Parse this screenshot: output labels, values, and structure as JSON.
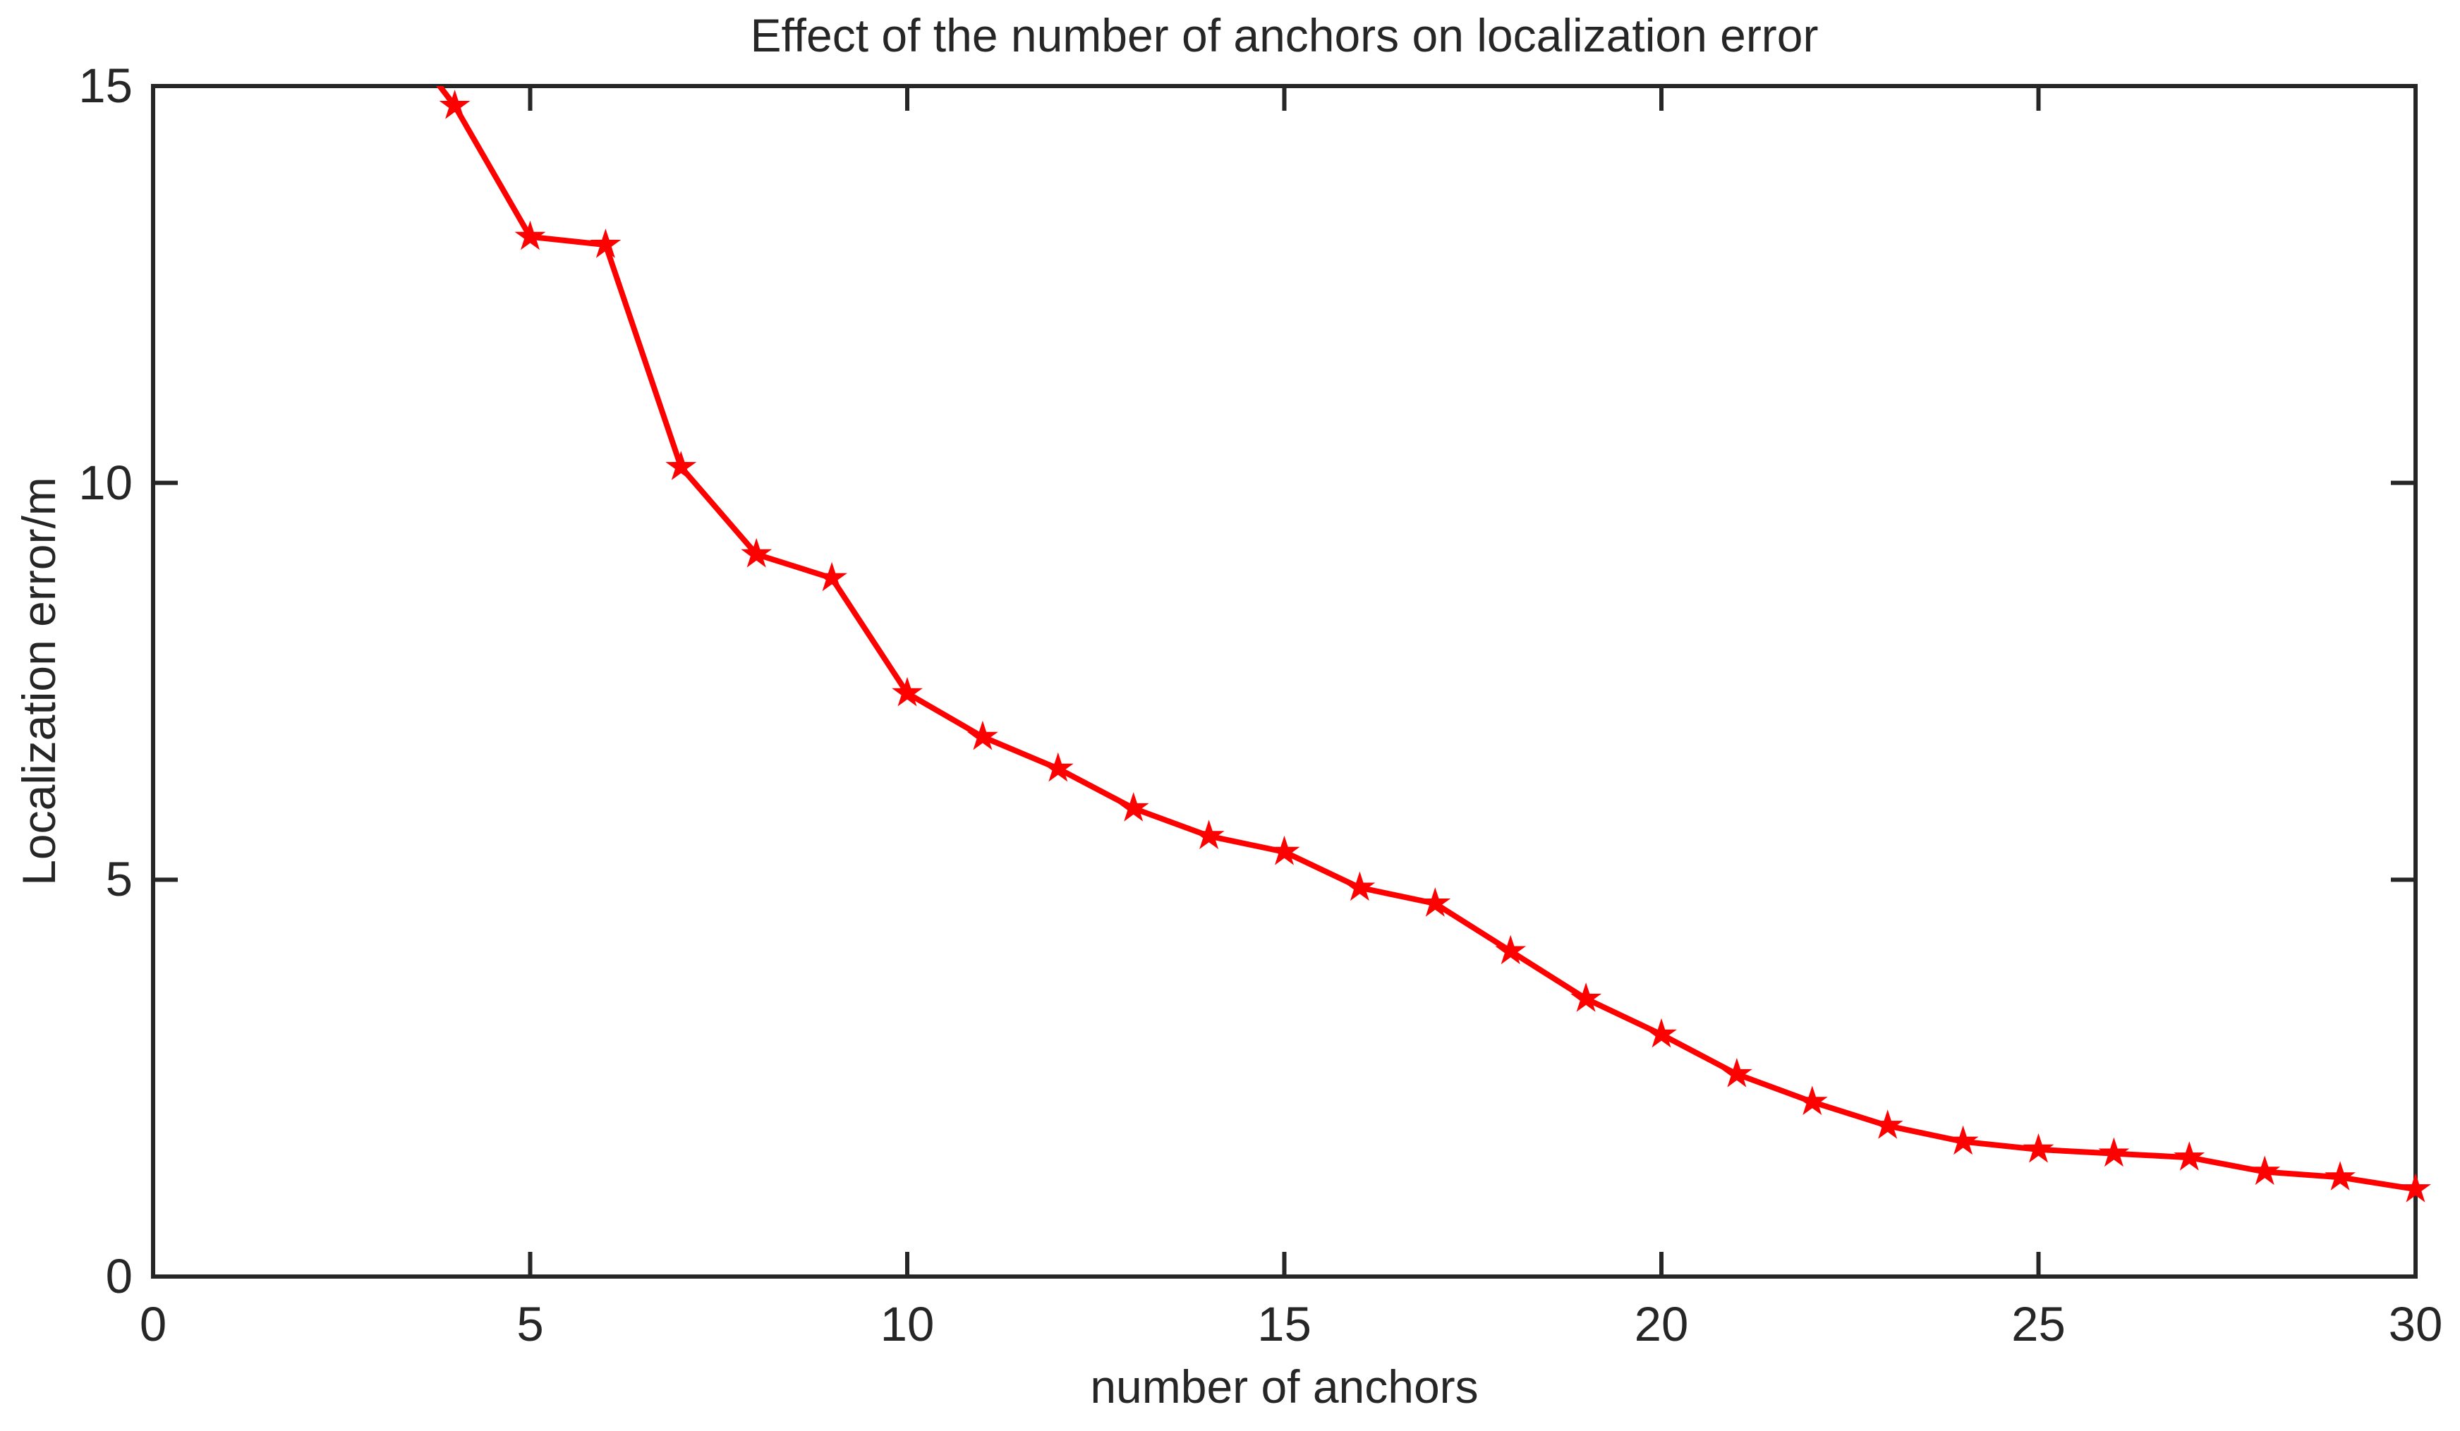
{
  "chart_data": {
    "type": "line",
    "title": "Effect of the number of anchors on localization error",
    "xlabel": "number of anchors",
    "ylabel": "Localization error/m",
    "xlim": [
      0,
      30
    ],
    "ylim": [
      0,
      15
    ],
    "x_ticks": [
      0,
      5,
      10,
      15,
      20,
      25,
      30
    ],
    "y_ticks": [
      0,
      5,
      10,
      15
    ],
    "x_tick_labels": [
      "0",
      "5",
      "10",
      "15",
      "20",
      "25",
      "30"
    ],
    "y_tick_labels": [
      "0",
      "5",
      "10",
      "15"
    ],
    "grid": false,
    "legend": "none",
    "axis_color": "#262626",
    "background": "#ffffff",
    "series": [
      {
        "name": "localization error vs number of anchors",
        "color": "#ff0000",
        "marker": "star-5",
        "line_style": "solid",
        "x": [
          3,
          4,
          5,
          6,
          7,
          8,
          9,
          10,
          11,
          12,
          13,
          14,
          15,
          16,
          17,
          18,
          19,
          20,
          21,
          22,
          23,
          24,
          25,
          26,
          27,
          28,
          29,
          30
        ],
        "y": [
          16.0,
          14.75,
          13.1,
          13.0,
          10.2,
          9.1,
          8.8,
          7.35,
          6.8,
          6.4,
          5.9,
          5.55,
          5.35,
          4.9,
          4.7,
          4.1,
          3.5,
          3.05,
          2.55,
          2.2,
          1.9,
          1.7,
          1.6,
          1.55,
          1.5,
          1.32,
          1.25,
          1.1
        ],
        "note": "first point (x=3) lies above the top axis limit and is clipped by the plot box"
      }
    ]
  }
}
